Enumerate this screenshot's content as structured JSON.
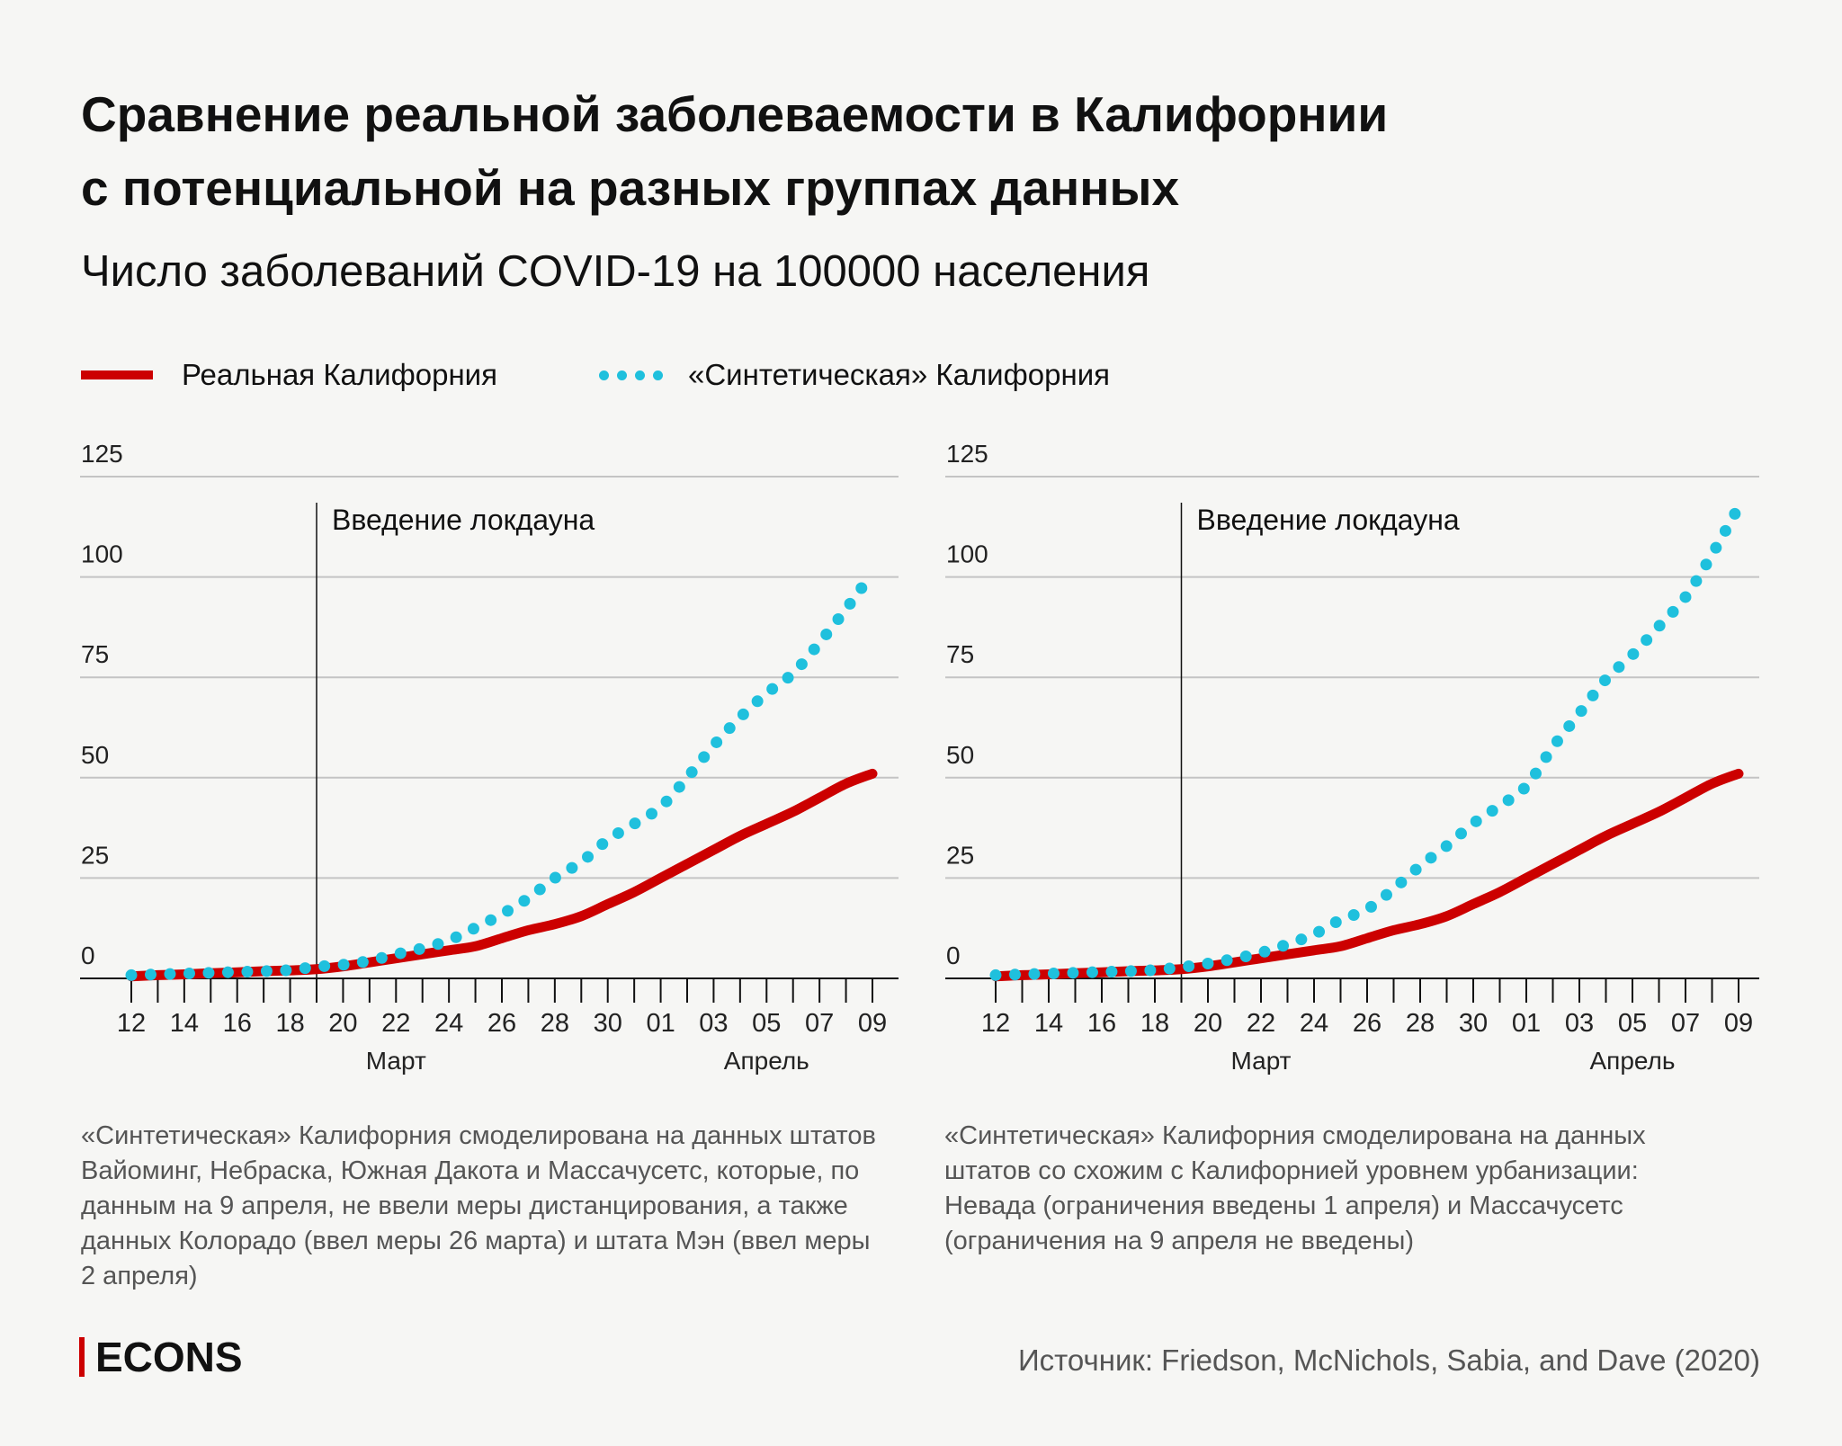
{
  "title_lines": [
    "Сравнение реальной заболеваемости в Калифорнии",
    "с потенциальной на разных группах данных"
  ],
  "subtitle": "Число заболеваний COVID-19 на 100000 населения",
  "legend": {
    "real": "Реальная Калифорния",
    "synthetic": "«Синтетическая» Калифорния"
  },
  "colors": {
    "real": "#cc0000",
    "synthetic": "#1fc0dd",
    "background": "#f6f6f4"
  },
  "chart_data": [
    {
      "type": "line",
      "xlabel": "",
      "ylabel": "",
      "ylim": [
        0,
        125
      ],
      "yticks": [
        0,
        25,
        50,
        75,
        100,
        125
      ],
      "x": [
        "12",
        "13",
        "14",
        "15",
        "16",
        "17",
        "18",
        "19",
        "20",
        "21",
        "22",
        "23",
        "24",
        "25",
        "26",
        "27",
        "28",
        "29",
        "30",
        "31",
        "01",
        "02",
        "03",
        "04",
        "05",
        "06",
        "07",
        "08",
        "09"
      ],
      "xtick_labels": [
        "12",
        "14",
        "16",
        "18",
        "20",
        "22",
        "24",
        "26",
        "28",
        "30",
        "01",
        "03",
        "05",
        "07",
        "09"
      ],
      "month_labels": [
        "Март",
        "Апрель"
      ],
      "annotation": {
        "label": "Введение локдауна",
        "x_index": 7
      },
      "series": [
        {
          "name": "Реальная Калифорния",
          "style": "line",
          "values": [
            0.5,
            0.8,
            1,
            1.3,
            1.5,
            1.8,
            2,
            2.3,
            3,
            4,
            5,
            6,
            7,
            8,
            10,
            12,
            13.5,
            15.5,
            18.5,
            21.5,
            25,
            28.5,
            32,
            35.5,
            38.5,
            41.5,
            45,
            48.5,
            51
          ]
        },
        {
          "name": "«Синтетическая» Калифорния",
          "style": "dotted",
          "values": [
            0.8,
            1,
            1.2,
            1.4,
            1.6,
            1.8,
            2.1,
            2.9,
            3.4,
            4.4,
            6,
            7.5,
            9.5,
            12.6,
            16,
            20,
            25,
            29,
            34.5,
            38.5,
            42.7,
            50,
            58,
            65,
            71,
            76,
            83.6,
            92,
            101
          ]
        }
      ],
      "note": "«Синтетическая» Калифорния смоделирована на данных штатов Вайоминг, Небраска, Южная Дакота и Массачусетс, которые, по данным на 9 апреля, не ввели меры дистанцирования, а также данных Колорадо (ввел меры 26 марта) и штата Мэн (ввел меры 2 апреля)"
    },
    {
      "type": "line",
      "xlabel": "",
      "ylabel": "",
      "ylim": [
        0,
        125
      ],
      "yticks": [
        0,
        25,
        50,
        75,
        100,
        125
      ],
      "x": [
        "12",
        "13",
        "14",
        "15",
        "16",
        "17",
        "18",
        "19",
        "20",
        "21",
        "22",
        "23",
        "24",
        "25",
        "26",
        "27",
        "28",
        "29",
        "30",
        "31",
        "01",
        "02",
        "03",
        "04",
        "05",
        "06",
        "07",
        "08",
        "09"
      ],
      "xtick_labels": [
        "12",
        "14",
        "16",
        "18",
        "20",
        "22",
        "24",
        "26",
        "28",
        "30",
        "01",
        "03",
        "05",
        "07",
        "09"
      ],
      "month_labels": [
        "Март",
        "Апрель"
      ],
      "annotation": {
        "label": "Введение локдауна",
        "x_index": 7
      },
      "series": [
        {
          "name": "Реальная Калифорния",
          "style": "line",
          "values": [
            0.5,
            0.8,
            1,
            1.3,
            1.5,
            1.8,
            2,
            2.3,
            3,
            4,
            5,
            6,
            7,
            8,
            10,
            12,
            13.5,
            15.5,
            18.5,
            21.5,
            25,
            28.5,
            32,
            35.5,
            38.5,
            41.5,
            45,
            48.5,
            51
          ]
        },
        {
          "name": "«Синтетическая» Калифорния",
          "style": "dotted",
          "values": [
            0.8,
            1,
            1.2,
            1.4,
            1.6,
            1.8,
            2.1,
            2.8,
            3.7,
            4.9,
            6.4,
            8.5,
            11,
            14.6,
            17.2,
            22.3,
            28,
            33,
            38.6,
            43,
            47.9,
            57.6,
            66,
            74.5,
            80.6,
            87.7,
            95,
            105.6,
            117.4
          ]
        }
      ],
      "note": "«Синтетическая» Калифорния смоделирована на данных штатов со схожим с Калифорнией уровнем урбанизации: Невада (ограничения введены 1 апреля) и Массачусетс (ограничения на 9 апреля не введены)"
    }
  ],
  "brand": "ECONS",
  "source": "Источник: Friedson, McNichols, Sabia, and Dave (2020)"
}
